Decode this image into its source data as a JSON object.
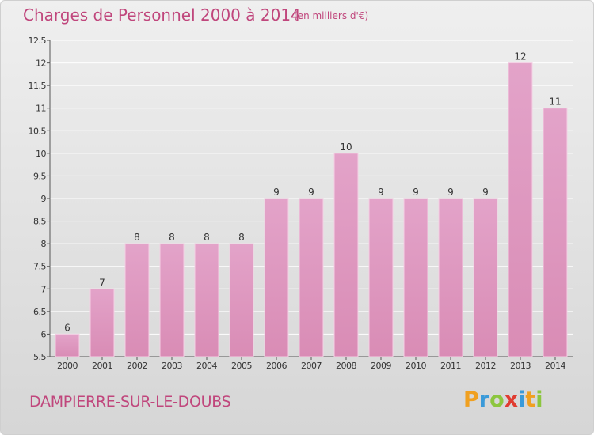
{
  "title": "Charges de Personnel 2000 à 2014",
  "subtitle": "(en milliers d'€)",
  "commune": "DAMPIERRE-SUR-LE-DOUBS",
  "brand": {
    "letters": [
      "P",
      "r",
      "o",
      "x",
      "i",
      "t",
      "i"
    ],
    "colors": [
      "#f0a020",
      "#3a9ad9",
      "#8cc63f",
      "#e03c31",
      "#3a9ad9",
      "#f0a020",
      "#8cc63f"
    ]
  },
  "colors": {
    "bar": "#d98cb5",
    "accent": "#c0467c"
  },
  "chart_data": {
    "type": "bar",
    "title": "Charges de Personnel 2000 à 2014",
    "xlabel": "",
    "ylabel": "",
    "categories": [
      "2000",
      "2001",
      "2002",
      "2003",
      "2004",
      "2005",
      "2006",
      "2007",
      "2008",
      "2009",
      "2010",
      "2011",
      "2012",
      "2013",
      "2014"
    ],
    "values": [
      6,
      7,
      8,
      8,
      8,
      8,
      9,
      9,
      10,
      9,
      9,
      9,
      9,
      12,
      11
    ],
    "data_labels": [
      "6",
      "7",
      "8",
      "8",
      "8",
      "8",
      "9",
      "9",
      "10",
      "9",
      "9",
      "9",
      "9",
      "12",
      "11"
    ],
    "ylim": [
      5.5,
      12.5
    ],
    "yticks": [
      "5.5",
      "6",
      "6.5",
      "7",
      "7.5",
      "8",
      "8.5",
      "9",
      "9.5",
      "10",
      "10.5",
      "11",
      "11.5",
      "12",
      "12.5"
    ],
    "grid": true
  }
}
